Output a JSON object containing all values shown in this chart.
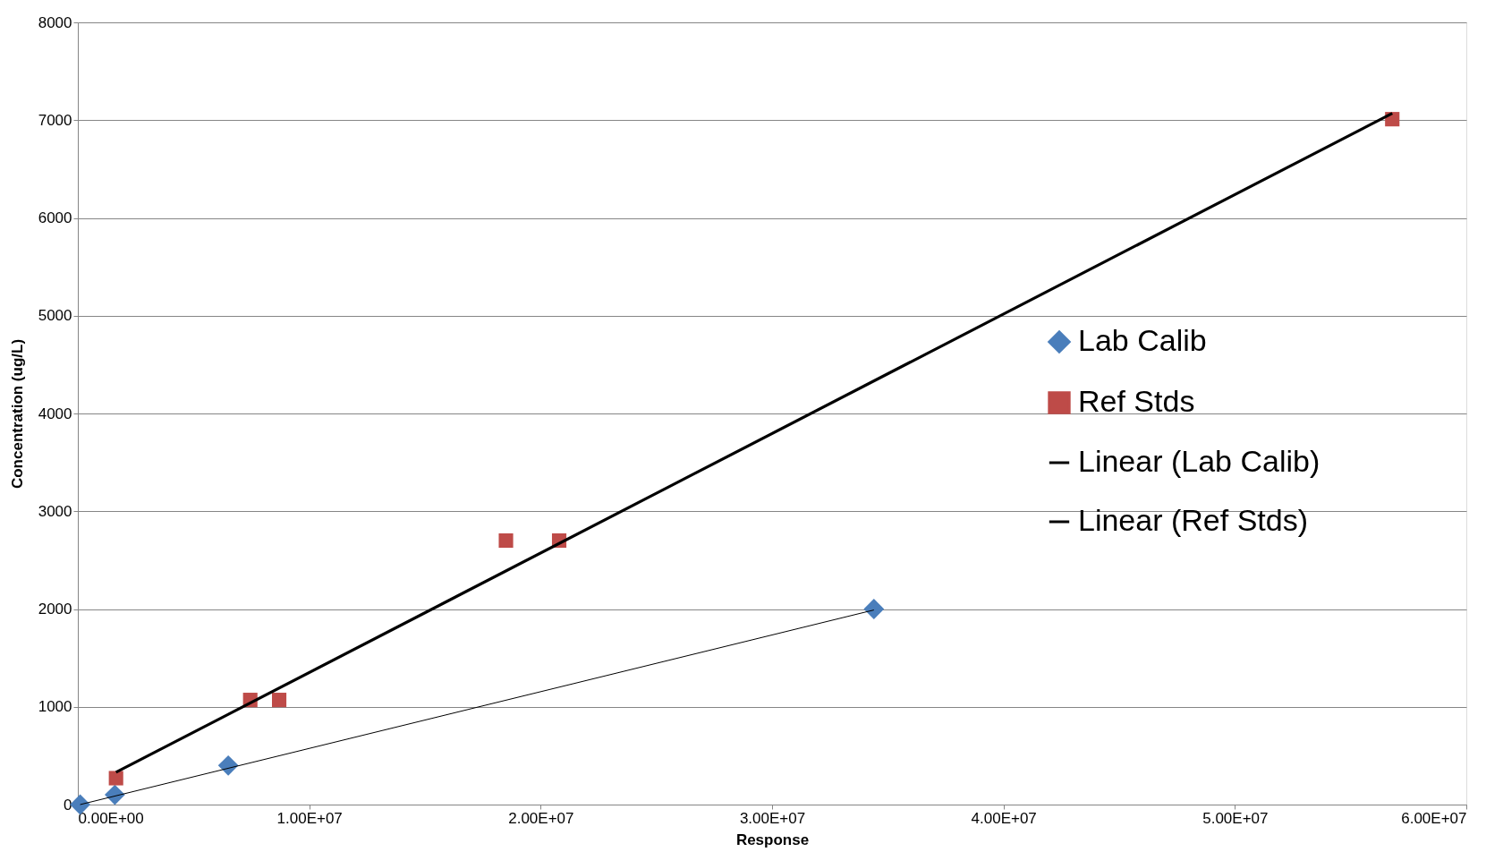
{
  "chart_data": {
    "type": "scatter",
    "xlabel": "Response",
    "ylabel": "Concentration (ug/L)",
    "xlim": [
      0,
      60000000
    ],
    "ylim": [
      0,
      8000
    ],
    "xticks": [
      {
        "value": 0,
        "label": "0.00E+00"
      },
      {
        "value": 10000000,
        "label": "1.00E+07"
      },
      {
        "value": 20000000,
        "label": "2.00E+07"
      },
      {
        "value": 30000000,
        "label": "3.00E+07"
      },
      {
        "value": 40000000,
        "label": "4.00E+07"
      },
      {
        "value": 50000000,
        "label": "5.00E+07"
      },
      {
        "value": 60000000,
        "label": "6.00E+07"
      }
    ],
    "yticks": [
      0,
      1000,
      2000,
      3000,
      4000,
      5000,
      6000,
      7000,
      8000
    ],
    "grid": "y",
    "legend": "right",
    "series": [
      {
        "name": "Lab Calib",
        "marker": "diamond",
        "color": "#4a7ebb",
        "x": [
          100000,
          1600000,
          6500000,
          34400000
        ],
        "values": [
          0,
          100,
          400,
          2000
        ]
      },
      {
        "name": "Ref Stds",
        "marker": "square",
        "color": "#be4b48",
        "x": [
          1650000,
          7450000,
          8700000,
          18500000,
          20800000,
          56800000
        ],
        "values": [
          270,
          1070,
          1070,
          2700,
          2700,
          7010
        ]
      },
      {
        "name": "Linear (Lab Calib)",
        "type": "line",
        "color": "#000000",
        "x": [
          100000,
          34400000
        ],
        "values": [
          0,
          1990
        ]
      },
      {
        "name": "Linear (Ref Stds)",
        "type": "line",
        "color": "#000000",
        "x": [
          1650000,
          56800000
        ],
        "values": [
          330,
          7070
        ]
      }
    ]
  }
}
